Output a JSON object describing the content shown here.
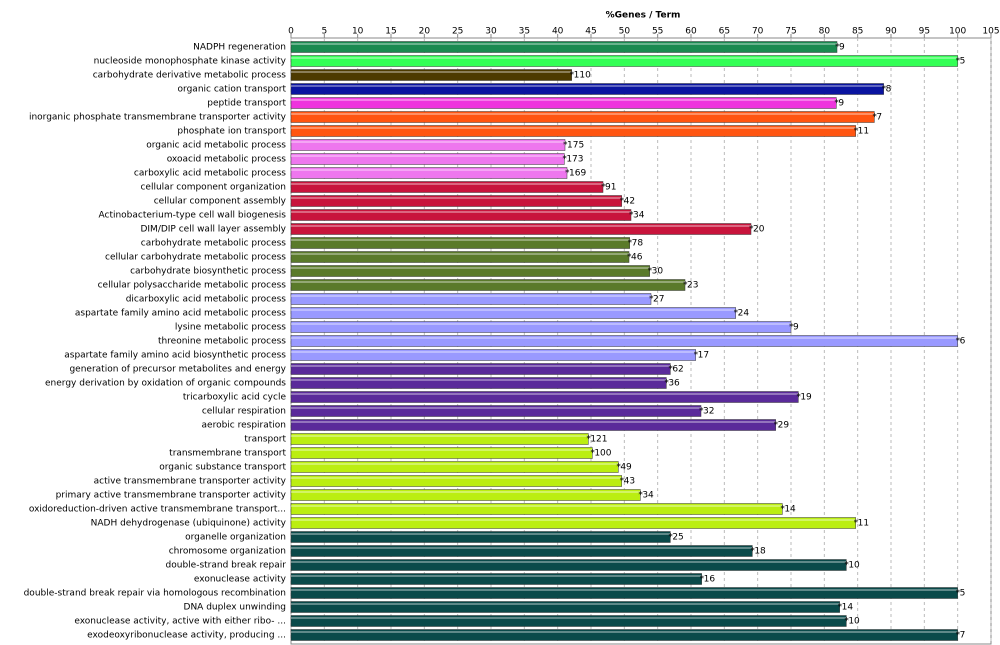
{
  "chart_data": {
    "type": "hbar",
    "xlabel": "%Genes / Term",
    "xlim": [
      0,
      105
    ],
    "xticks": [
      0,
      5,
      10,
      15,
      20,
      25,
      30,
      35,
      40,
      45,
      50,
      55,
      60,
      65,
      70,
      75,
      80,
      85,
      90,
      95,
      100,
      105
    ],
    "grid": true,
    "categories": [
      "NADPH regeneration",
      "nucleoside monophosphate kinase activity",
      "carbohydrate derivative metabolic process",
      "organic cation transport",
      "peptide transport",
      "inorganic phosphate transmembrane transporter activity",
      "phosphate ion transport",
      "organic acid metabolic process",
      "oxoacid metabolic process",
      "carboxylic acid metabolic process",
      "cellular component organization",
      "cellular component assembly",
      "Actinobacterium-type cell wall biogenesis",
      "DIM/DIP cell wall layer assembly",
      "carbohydrate metabolic process",
      "cellular carbohydrate metabolic process",
      "carbohydrate biosynthetic process",
      "cellular polysaccharide metabolic process",
      "dicarboxylic acid metabolic process",
      "aspartate family amino acid metabolic process",
      "lysine metabolic process",
      "threonine metabolic process",
      "aspartate family amino acid biosynthetic process",
      "generation of precursor metabolites and energy",
      "energy derivation by oxidation of organic compounds",
      "tricarboxylic acid cycle",
      "cellular respiration",
      "aerobic respiration",
      "transport",
      "transmembrane transport",
      "organic substance transport",
      "active transmembrane transporter activity",
      "primary active transmembrane transporter activity",
      "oxidoreduction-driven active transmembrane transport...",
      "NADH dehydrogenase (ubiquinone) activity",
      "organelle organization",
      "chromosome organization",
      "double-strand break repair",
      "exonuclease activity",
      "double-strand break repair via homologous recombination",
      "DNA duplex unwinding",
      "exonuclease activity, active with either ribo- ...",
      "exodeoxyribonuclease activity, producing ..."
    ],
    "values": [
      81.9,
      100,
      42.1,
      88.9,
      81.8,
      87.5,
      84.7,
      41.1,
      41.0,
      41.4,
      46.8,
      49.6,
      51.0,
      69.0,
      50.8,
      50.7,
      53.8,
      59.1,
      54.0,
      66.7,
      75.0,
      100,
      60.7,
      56.9,
      56.3,
      76.1,
      61.5,
      72.7,
      44.6,
      45.2,
      49.1,
      49.6,
      52.4,
      73.7,
      84.7,
      56.9,
      69.2,
      83.3,
      61.6,
      100,
      82.3,
      83.3,
      100
    ],
    "gene_counts": [
      9,
      5,
      110,
      8,
      9,
      7,
      11,
      175,
      173,
      169,
      91,
      42,
      34,
      20,
      78,
      46,
      30,
      23,
      27,
      24,
      9,
      6,
      17,
      62,
      36,
      19,
      32,
      29,
      121,
      100,
      49,
      43,
      34,
      14,
      11,
      25,
      18,
      10,
      16,
      5,
      14,
      10,
      7
    ],
    "colors": [
      "#1a8a50",
      "#33ff55",
      "#4d3a00",
      "#0a14a0",
      "#ee33dd",
      "#ff5511",
      "#ff5511",
      "#ee77ee",
      "#ee77ee",
      "#ee77ee",
      "#c8143c",
      "#c8143c",
      "#c8143c",
      "#c8143c",
      "#5a7a2a",
      "#5a7a2a",
      "#5a7a2a",
      "#5a7a2a",
      "#9999ff",
      "#9999ff",
      "#9999ff",
      "#9999ff",
      "#9999ff",
      "#5a2a9a",
      "#5a2a9a",
      "#5a2a9a",
      "#5a2a9a",
      "#5a2a9a",
      "#bbee11",
      "#bbee11",
      "#bbee11",
      "#bbee11",
      "#bbee11",
      "#bbee11",
      "#bbee11",
      "#0a4a4a",
      "#0a4a4a",
      "#0a4a4a",
      "#0a4a4a",
      "#0a4a4a",
      "#0a4a4a",
      "#0a4a4a",
      "#0a4a4a"
    ]
  }
}
